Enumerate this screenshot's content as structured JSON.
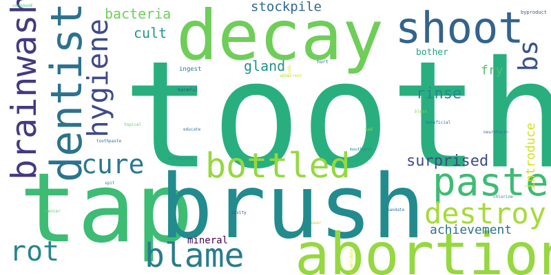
{
  "words": [
    {
      "text": "tooth",
      "color": "#29af7f"
    },
    {
      "text": "tap",
      "color": "#3dbc74"
    },
    {
      "text": "brush",
      "color": "#228b8d"
    },
    {
      "text": "decay",
      "color": "#6ece58"
    },
    {
      "text": "abortion",
      "color": "#95d840"
    },
    {
      "text": "dentist",
      "color": "#2c728e"
    },
    {
      "text": "brainwash",
      "color": "#443983"
    },
    {
      "text": "shoot",
      "color": "#33638d"
    },
    {
      "text": "paste",
      "color": "#3dbc74"
    },
    {
      "text": "bottled",
      "color": "#95d840"
    },
    {
      "text": "hygiene",
      "color": "#3e4a89"
    },
    {
      "text": "blame",
      "color": "#287c8e"
    },
    {
      "text": "destroy",
      "color": "#a5db36"
    },
    {
      "text": "cure",
      "color": "#2a788e"
    },
    {
      "text": "rot",
      "color": "#25858e"
    },
    {
      "text": "bs",
      "color": "#3b528b"
    },
    {
      "text": "stockpile",
      "color": "#30698e"
    },
    {
      "text": "bacteria",
      "color": "#6ece58"
    },
    {
      "text": "surprised",
      "color": "#3e4a89"
    },
    {
      "text": "cult",
      "color": "#1f988b"
    },
    {
      "text": "gland",
      "color": "#21918c"
    },
    {
      "text": "rinse",
      "color": "#238a8d"
    },
    {
      "text": "fry",
      "color": "#4ac16d"
    },
    {
      "text": "introduce",
      "color": "#d2e21b"
    },
    {
      "text": "achievement",
      "color": "#2c728e"
    },
    {
      "text": "mineral",
      "color": "#440154"
    },
    {
      "text": "bother",
      "color": "#20a486"
    },
    {
      "text": "ingest",
      "color": "#287c8e"
    },
    {
      "text": "harmful",
      "color": "#3e4a89"
    },
    {
      "text": "hurt",
      "color": "#2a788e"
    },
    {
      "text": "compound",
      "color": "#3dbc74"
    },
    {
      "text": "byproduct",
      "color": "#3b528b"
    },
    {
      "text": "topical",
      "color": "#5ec962"
    },
    {
      "text": "educate",
      "color": "#2a788e"
    },
    {
      "text": "toothpaste",
      "color": "#2d708e"
    },
    {
      "text": "strengthen",
      "color": "#21918c"
    },
    {
      "text": "beneficial",
      "color": "#2c728e"
    },
    {
      "text": "neurotoxin",
      "color": "#31688e"
    },
    {
      "text": "bless",
      "color": "#7ad151"
    },
    {
      "text": "sad",
      "color": "#95d840"
    },
    {
      "text": "mouthwash",
      "color": "#218f8d"
    },
    {
      "text": "spit",
      "color": "#2a788e"
    },
    {
      "text": "chlorine",
      "color": "#26828e"
    },
    {
      "text": "mandate",
      "color": "#2c728e"
    },
    {
      "text": "denier",
      "color": "#5ec962"
    },
    {
      "text": "cavity",
      "color": "#3b528b"
    },
    {
      "text": "fluoridate",
      "color": "#dde318"
    },
    {
      "text": "abhorrent",
      "color": "#bddf26"
    },
    {
      "text": "finds",
      "color": "#dde318"
    },
    {
      "text": "wear",
      "color": "#bddf26"
    }
  ]
}
